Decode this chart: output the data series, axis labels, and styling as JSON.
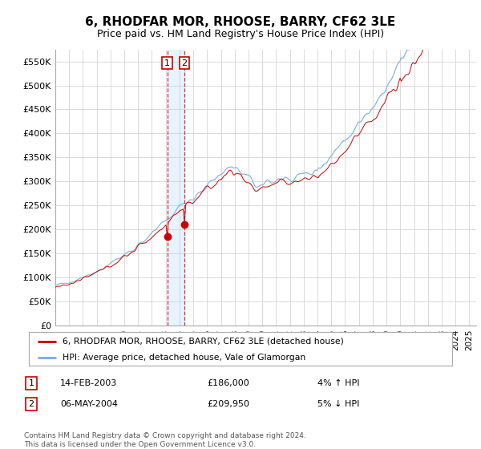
{
  "title": "6, RHODFAR MOR, RHOOSE, BARRY, CF62 3LE",
  "subtitle": "Price paid vs. HM Land Registry's House Price Index (HPI)",
  "ylim": [
    0,
    575000
  ],
  "yticks": [
    0,
    50000,
    100000,
    150000,
    200000,
    250000,
    300000,
    350000,
    400000,
    450000,
    500000,
    550000
  ],
  "yticklabels": [
    "£0",
    "£50K",
    "£100K",
    "£150K",
    "£200K",
    "£250K",
    "£300K",
    "£350K",
    "£400K",
    "£450K",
    "£500K",
    "£550K"
  ],
  "xlim_start": 1995.0,
  "xlim_end": 2025.5,
  "line1_color": "#cc0000",
  "line2_color": "#7aaadd",
  "line2_fill_color": "#c5d9ee",
  "transaction1_date": 2003.12,
  "transaction1_price": 186000,
  "transaction2_date": 2004.35,
  "transaction2_price": 209950,
  "legend1_label": "6, RHODFAR MOR, RHOOSE, BARRY, CF62 3LE (detached house)",
  "legend2_label": "HPI: Average price, detached house, Vale of Glamorgan",
  "table_row1_num": "1",
  "table_row1_date": "14-FEB-2003",
  "table_row1_price": "£186,000",
  "table_row1_hpi": "4% ↑ HPI",
  "table_row2_num": "2",
  "table_row2_date": "06-MAY-2004",
  "table_row2_price": "£209,950",
  "table_row2_hpi": "5% ↓ HPI",
  "footer": "Contains HM Land Registry data © Crown copyright and database right 2024.\nThis data is licensed under the Open Government Licence v3.0.",
  "background_color": "#ffffff",
  "grid_color": "#cccccc",
  "vline_color": "#dd0000",
  "vline_fill_color": "#ddeeff",
  "title_fontsize": 11,
  "subtitle_fontsize": 9,
  "tick_fontsize": 8
}
